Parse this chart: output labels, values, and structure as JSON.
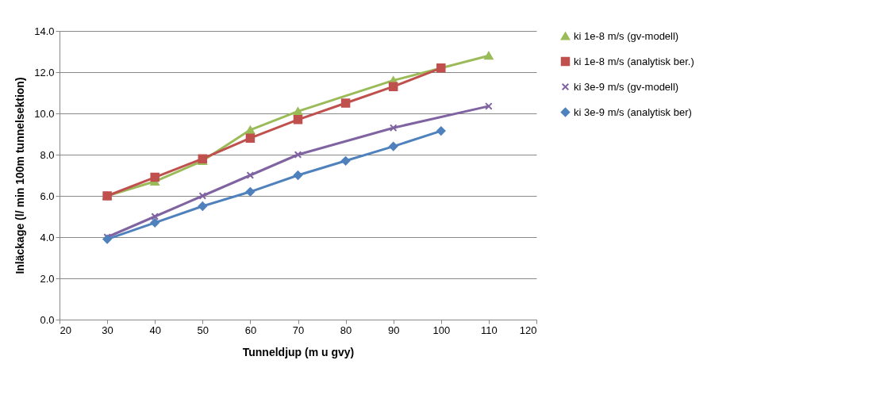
{
  "chart_data": {
    "type": "line",
    "xlabel": "Tunneldjup (m u gvy)",
    "ylabel": "Inläckage (l/ min 100m tunnelsektion)",
    "xlim": [
      20,
      120
    ],
    "xticks": [
      20,
      30,
      40,
      50,
      60,
      70,
      80,
      90,
      100,
      110,
      120
    ],
    "ylim": [
      0,
      14
    ],
    "yticks": [
      {
        "value": 0,
        "label": "0.0"
      },
      {
        "value": 2,
        "label": "2.0"
      },
      {
        "value": 4,
        "label": "4.0"
      },
      {
        "value": 6,
        "label": "6.0"
      },
      {
        "value": 8,
        "label": "8.0"
      },
      {
        "value": 10,
        "label": "10.0"
      },
      {
        "value": 12,
        "label": "12.0"
      },
      {
        "value": 14,
        "label": "14.0"
      }
    ],
    "grid": "y",
    "legend": "right",
    "series": [
      {
        "name": "ki 1e-8 m/s (gv-modell)",
        "color": "#9bbb59",
        "marker": "triangle",
        "x": [
          30,
          40,
          50,
          60,
          70,
          90,
          110
        ],
        "values": [
          6.0,
          6.7,
          7.7,
          9.2,
          10.1,
          11.6,
          12.8
        ]
      },
      {
        "name": "ki 1e-8 m/s (analytisk ber.)",
        "color": "#c0504d",
        "marker": "square",
        "x": [
          30,
          40,
          50,
          60,
          70,
          80,
          90,
          100
        ],
        "values": [
          6.0,
          6.9,
          7.8,
          8.8,
          9.7,
          10.5,
          11.3,
          12.2
        ]
      },
      {
        "name": "ki 3e-9 m/s (gv-modell)",
        "color": "#8064a2",
        "marker": "cross",
        "x": [
          30,
          40,
          50,
          60,
          70,
          90,
          110
        ],
        "values": [
          4.0,
          5.0,
          6.0,
          7.0,
          8.0,
          9.3,
          10.35
        ]
      },
      {
        "name": "ki 3e-9 m/s (analytisk ber)",
        "color": "#4f81bd",
        "marker": "diamond",
        "x": [
          30,
          40,
          50,
          60,
          70,
          80,
          90,
          100
        ],
        "values": [
          3.9,
          4.7,
          5.5,
          6.2,
          7.0,
          7.7,
          8.4,
          9.15
        ]
      }
    ]
  }
}
